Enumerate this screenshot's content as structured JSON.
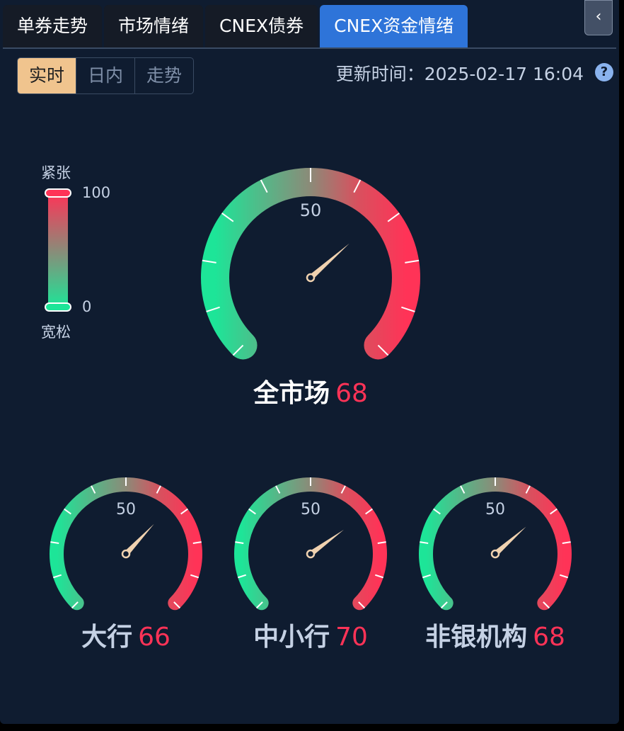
{
  "tabs": [
    {
      "label": "单券走势"
    },
    {
      "label": "市场情绪"
    },
    {
      "label": "CNEX债券"
    },
    {
      "label": "CNEX资金情绪",
      "active": true
    }
  ],
  "collapse_icon": "chevron-left-icon",
  "modes": [
    {
      "label": "实时",
      "active": true
    },
    {
      "label": "日内"
    },
    {
      "label": "走势"
    }
  ],
  "update": {
    "label": "更新时间：",
    "time": "2025-02-17 16:04"
  },
  "help_icon": "question-circle-icon",
  "help_label": "?",
  "legend": {
    "top": "紧张",
    "bottom": "宽松",
    "max": "100",
    "min": "0"
  },
  "colors": {
    "low": "#1de598",
    "high": "#ff3357",
    "needle": "#f0d2b0",
    "active_tab": "#2e74d9"
  },
  "gauges": [
    {
      "name": "全市场",
      "value": 68,
      "mid": "50"
    },
    {
      "name": "大行",
      "value": 66,
      "mid": "50"
    },
    {
      "name": "中小行",
      "value": 70,
      "mid": "50"
    },
    {
      "name": "非银机构",
      "value": 68,
      "mid": "50"
    }
  ]
}
